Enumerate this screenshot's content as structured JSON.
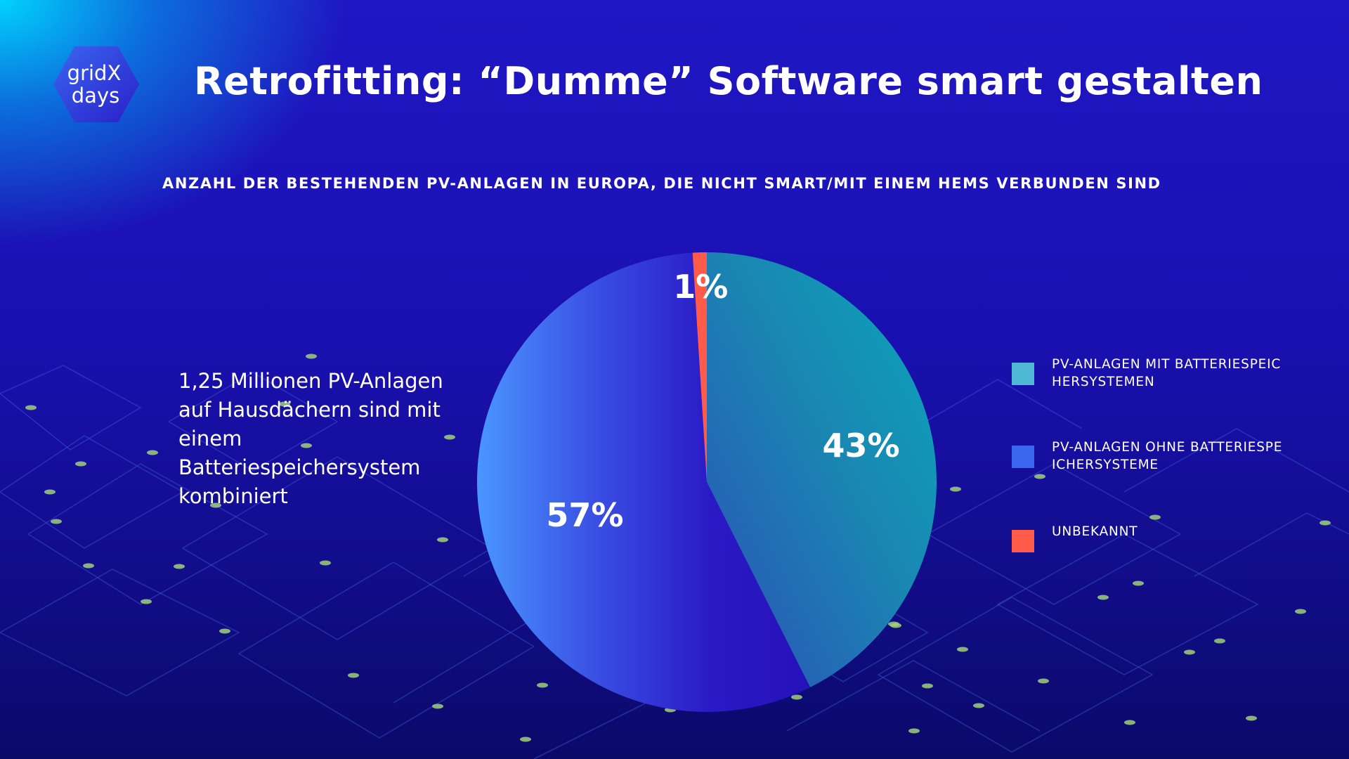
{
  "header": {
    "logo_text_top": "gridX",
    "logo_text_bottom": "days",
    "title": "Retrofitting: “Dumme” Software smart gestalten"
  },
  "side_note": "1,25 Millionen PV-Anlagen auf Hausdächern sind mit einem Batteriespeichersystem kombiniert",
  "colors": {
    "slice_with_battery": "#1a9fb5",
    "slice_without_battery": "#2a1fd0",
    "slice_unknown": "#ff5a4a",
    "legend_with_battery": "#4fb8d4",
    "legend_without_battery": "#3a66f0",
    "legend_unknown": "#ff5a4a"
  },
  "chart_data": {
    "type": "pie",
    "title": "ANZAHL DER BESTEHENDEN PV-ANLAGEN IN EUROPA, DIE NICHT SMART/MIT EINEM HEMS VERBUNDEN SIND",
    "legend_position": "right",
    "slices": [
      {
        "name": "PV-ANLAGEN MIT BATTERIESPEICHERSYSTEMEN",
        "value": 43,
        "label": "43%"
      },
      {
        "name": "PV-ANLAGEN OHNE BATTERIESPEICHERSYSTEME",
        "value": 57,
        "label": "57%"
      },
      {
        "name": "UNBEKANNT",
        "value": 1,
        "label": "1%"
      }
    ]
  }
}
